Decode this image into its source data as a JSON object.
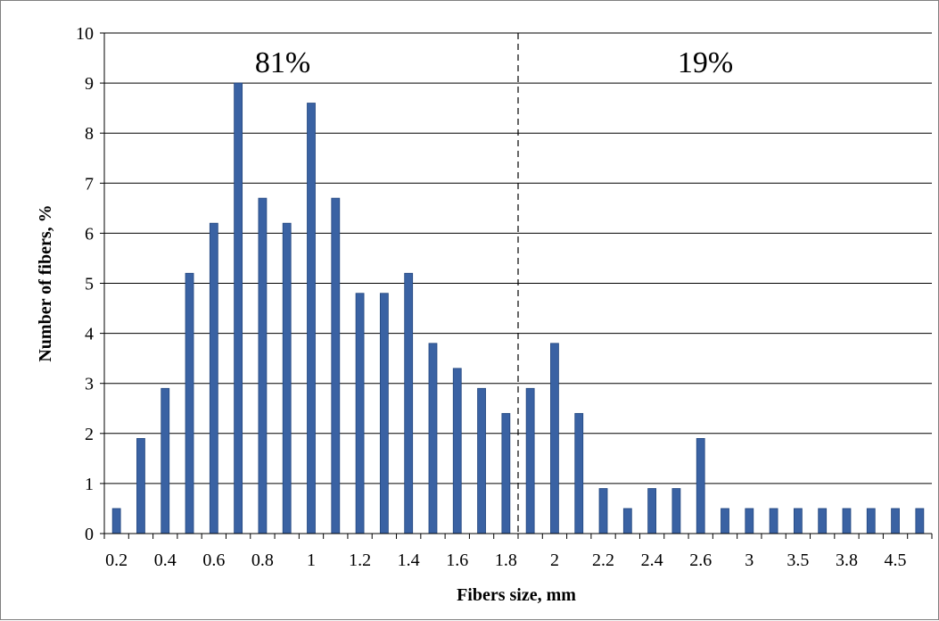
{
  "chart_data": {
    "type": "bar",
    "xlabel": "Fibers size, mm",
    "ylabel": "Number of fibers, %",
    "ylim": [
      0,
      10
    ],
    "yticks": [
      "0",
      "1",
      "2",
      "3",
      "4",
      "5",
      "6",
      "7",
      "8",
      "9",
      "10"
    ],
    "grid": true,
    "categories": [
      "0.2",
      "0.3",
      "0.4",
      "0.5",
      "0.6",
      "0.7",
      "0.8",
      "0.9",
      "1",
      "1.1",
      "1.2",
      "1.3",
      "1.4",
      "1.5",
      "1.6",
      "1.7",
      "1.8",
      "1.9",
      "2",
      "2.1",
      "2.2",
      "2.3",
      "2.4",
      "2.5",
      "2.6",
      "2.7",
      "3",
      "3.2",
      "3.5",
      "3.6",
      "3.8",
      "4",
      "4.5",
      "5"
    ],
    "category_labels": [
      "0.2",
      "",
      "0.4",
      "",
      "0.6",
      "",
      "0.8",
      "",
      "1",
      "",
      "1.2",
      "",
      "1.4",
      "",
      "1.6",
      "",
      "1.8",
      "",
      "2",
      "",
      "2.2",
      "",
      "2.4",
      "",
      "2.6",
      "",
      "3",
      "",
      "3.5",
      "",
      "3.8",
      "",
      "4.5",
      ""
    ],
    "values": [
      0.5,
      1.9,
      2.9,
      5.2,
      6.2,
      9.0,
      6.7,
      6.2,
      8.6,
      6.7,
      4.8,
      4.8,
      5.2,
      3.8,
      3.3,
      2.9,
      2.4,
      2.9,
      3.8,
      2.4,
      0.9,
      0.5,
      0.9,
      0.9,
      1.9,
      0.5,
      0.5,
      0.5,
      0.5,
      0.5,
      0.5,
      0.5,
      0.5,
      0.5
    ],
    "bar_color": "#3a62a3",
    "divider_after_index": 16,
    "annotations": [
      {
        "text": "81%",
        "side": "left"
      },
      {
        "text": "19%",
        "side": "right"
      }
    ]
  }
}
